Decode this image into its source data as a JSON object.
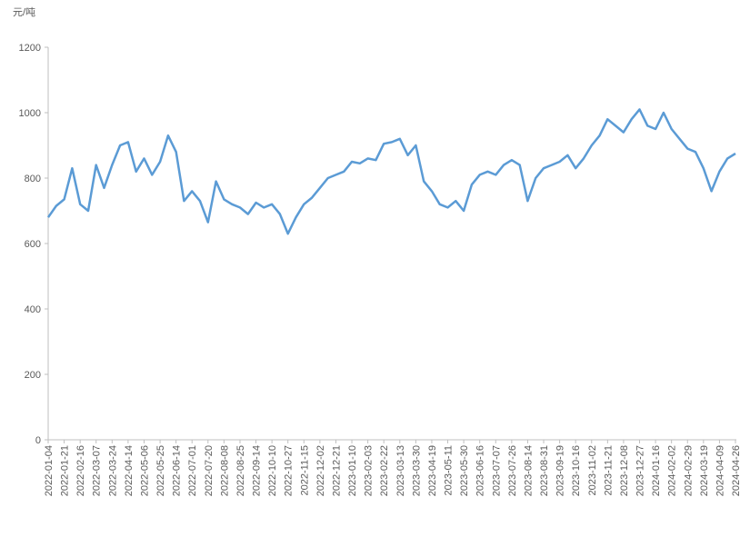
{
  "chart_data": {
    "type": "line",
    "y_label": "元/吨",
    "categories": [
      "2022-01-04",
      null,
      "2022-01-21",
      null,
      "2022-02-16",
      null,
      "2022-03-07",
      null,
      "2022-03-24",
      null,
      "2022-04-14",
      null,
      "2022-05-06",
      null,
      "2022-05-25",
      null,
      "2022-06-14",
      null,
      "2022-07-01",
      null,
      "2022-07-20",
      null,
      "2022-08-08",
      null,
      "2022-08-25",
      null,
      "2022-09-14",
      null,
      "2022-10-10",
      null,
      "2022-10-27",
      null,
      "2022-11-15",
      null,
      "2022-12-02",
      null,
      "2022-12-21",
      null,
      "2023-01-10",
      null,
      "2023-02-03",
      null,
      "2023-02-22",
      null,
      "2023-03-13",
      null,
      "2023-03-30",
      null,
      "2023-04-19",
      null,
      "2023-05-11",
      null,
      "2023-05-30",
      null,
      "2023-06-16",
      null,
      "2023-07-07",
      null,
      "2023-07-26",
      null,
      "2023-08-14",
      null,
      "2023-08-31",
      null,
      "2023-09-19",
      null,
      "2023-10-16",
      null,
      "2023-11-02",
      null,
      "2023-11-21",
      null,
      "2023-12-08",
      null,
      "2023-12-27",
      null,
      "2024-01-16",
      null,
      "2024-02-02",
      null,
      "2024-02-29",
      null,
      "2024-03-19",
      null,
      "2024-04-09",
      null,
      "2024-04-26"
    ],
    "values": [
      680,
      715,
      735,
      830,
      720,
      700,
      840,
      770,
      840,
      900,
      910,
      820,
      860,
      810,
      850,
      930,
      880,
      730,
      760,
      730,
      665,
      790,
      735,
      720,
      710,
      690,
      725,
      710,
      720,
      690,
      630,
      680,
      720,
      740,
      770,
      800,
      810,
      820,
      850,
      845,
      860,
      855,
      905,
      910,
      920,
      870,
      900,
      790,
      760,
      720,
      710,
      730,
      700,
      780,
      810,
      820,
      810,
      840,
      855,
      840,
      730,
      800,
      830,
      840,
      850,
      870,
      830,
      860,
      900,
      930,
      980,
      960,
      940,
      980,
      1010,
      960,
      950,
      1000,
      950,
      920,
      890,
      880,
      830,
      760,
      820,
      860,
      875
    ],
    "color": "#5b9bd5",
    "ylim": [
      0,
      1200
    ],
    "yticks": [
      0,
      200,
      400,
      600,
      800,
      1000,
      1200
    ]
  }
}
